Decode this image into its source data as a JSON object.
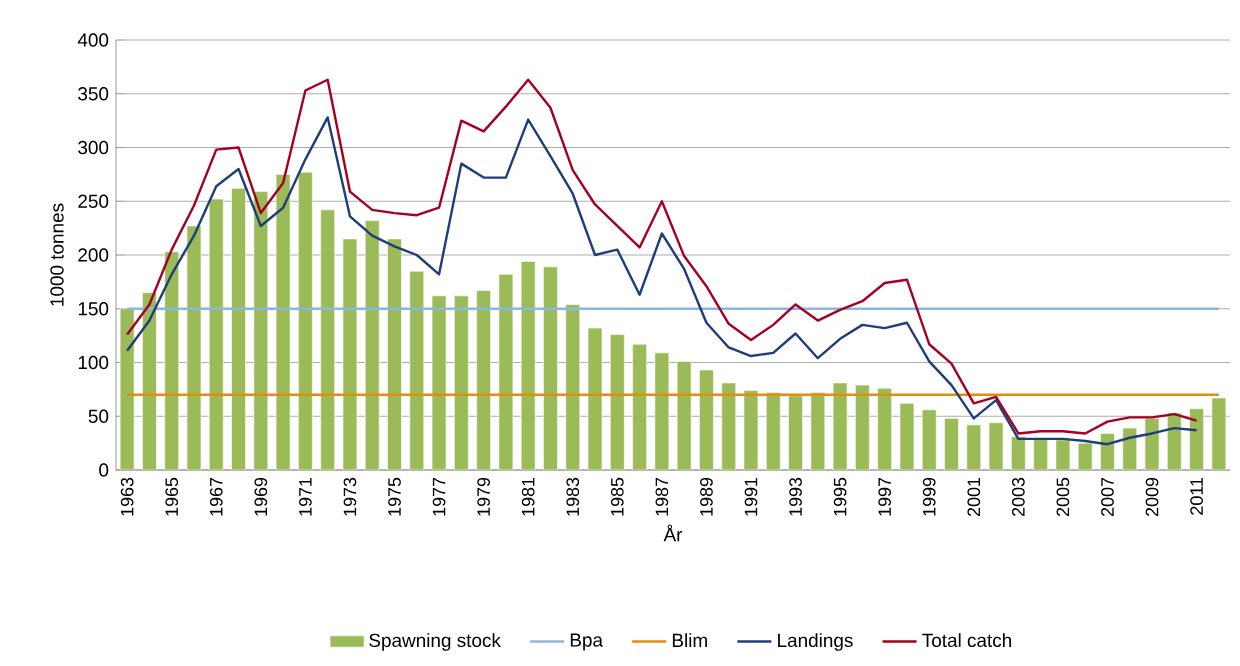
{
  "chart_data": {
    "type": "bar",
    "xlabel": "År",
    "ylabel": "1000 tonnes",
    "categories": [
      "1963",
      null,
      "1965",
      null,
      "1967",
      null,
      "1969",
      null,
      "1971",
      null,
      "1973",
      null,
      "1975",
      null,
      "1977",
      null,
      "1979",
      null,
      "1981",
      null,
      "1983",
      null,
      "1985",
      null,
      "1987",
      null,
      "1989",
      null,
      "1991",
      null,
      "1993",
      null,
      "1995",
      null,
      "1997",
      null,
      "1999",
      null,
      "2001",
      null,
      "2003",
      null,
      "2005",
      null,
      "2007",
      null,
      "2009",
      null,
      "2011",
      null
    ],
    "series": [
      {
        "name": "Spawning stock",
        "color": "#9bbb59",
        "values": [
          150,
          165,
          203,
          227,
          252,
          262,
          259,
          275,
          277,
          242,
          215,
          232,
          215,
          185,
          162,
          162,
          167,
          182,
          194,
          189,
          154,
          132,
          126,
          117,
          109,
          101,
          93,
          81,
          74,
          72,
          69,
          72,
          81,
          79,
          76,
          62,
          56,
          48,
          42,
          44,
          31,
          29,
          28,
          25,
          34,
          39,
          48,
          53,
          57,
          67
        ]
      },
      {
        "name": "Bpa",
        "type": "line",
        "color": "#8eb4e3",
        "values": [
          150,
          150,
          150,
          150,
          150,
          150,
          150,
          150,
          150,
          150,
          150,
          150,
          150,
          150,
          150,
          150,
          150,
          150,
          150,
          150,
          150,
          150,
          150,
          150,
          150,
          150,
          150,
          150,
          150,
          150,
          150,
          150,
          150,
          150,
          150,
          150,
          150,
          150,
          150,
          150,
          150,
          150,
          150,
          150,
          150,
          150,
          150,
          150,
          150,
          150
        ]
      },
      {
        "name": "Blim",
        "type": "line",
        "color": "#e48b10",
        "values": [
          70,
          70,
          70,
          70,
          70,
          70,
          70,
          70,
          70,
          70,
          70,
          70,
          70,
          70,
          70,
          70,
          70,
          70,
          70,
          70,
          70,
          70,
          70,
          70,
          70,
          70,
          70,
          70,
          70,
          70,
          70,
          70,
          70,
          70,
          70,
          70,
          70,
          70,
          70,
          70,
          70,
          70,
          70,
          70,
          70,
          70,
          70,
          70,
          70,
          70
        ]
      },
      {
        "name": "Landings",
        "type": "line",
        "color": "#1f3d7a",
        "values": [
          111,
          139,
          182,
          218,
          264,
          280,
          227,
          244,
          289,
          328,
          236,
          218,
          208,
          200,
          182,
          285,
          272,
          272,
          326,
          292,
          257,
          200,
          205,
          163,
          220,
          187,
          137,
          114,
          106,
          109,
          127,
          104,
          122,
          135,
          132,
          137,
          101,
          79,
          48,
          65,
          29,
          29,
          29,
          27,
          24,
          30,
          34,
          39,
          37,
          null
        ]
      },
      {
        "name": "Total catch",
        "type": "line",
        "color": "#a50021",
        "values": [
          126,
          154,
          205,
          246,
          298,
          300,
          239,
          267,
          353,
          363,
          259,
          242,
          239,
          237,
          244,
          325,
          315,
          338,
          363,
          337,
          279,
          247,
          227,
          207,
          250,
          199,
          171,
          136,
          121,
          135,
          154,
          139,
          149,
          157,
          174,
          177,
          117,
          99,
          62,
          68,
          34,
          36,
          36,
          34,
          45,
          49,
          49,
          52,
          46,
          null
        ]
      }
    ],
    "ylim": [
      0,
      400
    ],
    "yticks": [
      0,
      50,
      100,
      150,
      200,
      250,
      300,
      350,
      400
    ],
    "grid": "y",
    "legend": "bottom"
  }
}
